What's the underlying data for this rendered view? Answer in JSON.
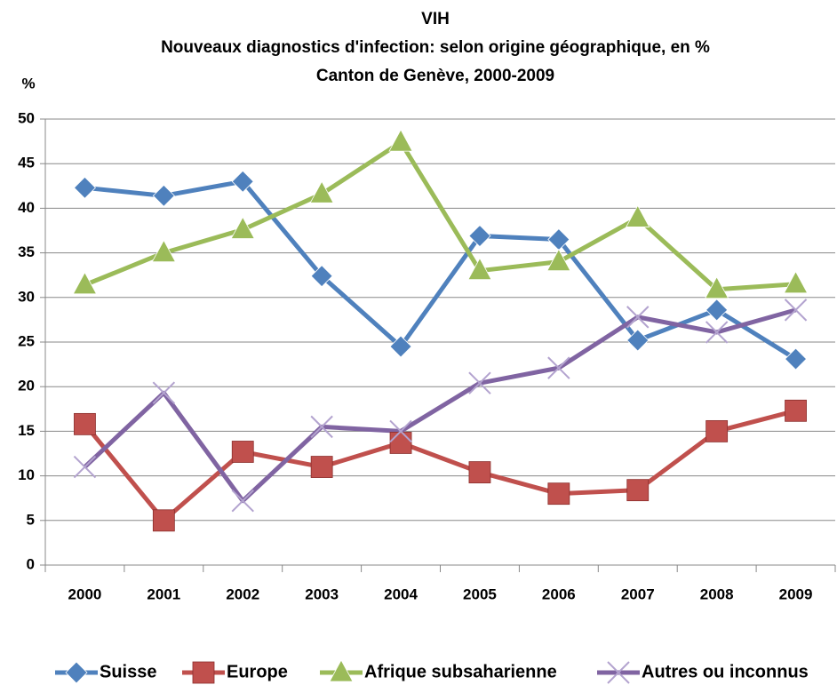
{
  "chart_data": {
    "type": "line",
    "title": [
      "VIH",
      "Nouveaux diagnostics d'infection: selon origine géographique, en %",
      "Canton de Genève, 2000-2009"
    ],
    "y_label": "%",
    "categories": [
      "2000",
      "2001",
      "2002",
      "2003",
      "2004",
      "2005",
      "2006",
      "2007",
      "2008",
      "2009"
    ],
    "series": [
      {
        "name": "Suisse",
        "color": "#4f81bd",
        "marker": "diamond",
        "values": [
          42.3,
          41.4,
          43.0,
          32.4,
          24.5,
          36.9,
          36.5,
          25.2,
          28.6,
          23.1
        ]
      },
      {
        "name": "Europe",
        "color": "#c0504d",
        "marker": "square",
        "values": [
          15.8,
          5.0,
          12.7,
          11.0,
          13.7,
          10.4,
          8.0,
          8.4,
          15.0,
          17.3
        ]
      },
      {
        "name": "Afrique subsaharienne",
        "color": "#9bbb59",
        "marker": "triangle",
        "values": [
          31.4,
          35.0,
          37.6,
          41.6,
          47.4,
          33.0,
          34.0,
          38.9,
          30.9,
          31.5
        ]
      },
      {
        "name": "Autres ou inconnus",
        "color": "#8064a2",
        "marker": "x",
        "values": [
          11.0,
          19.3,
          7.2,
          15.5,
          15.0,
          20.4,
          22.1,
          27.8,
          26.1,
          28.6
        ]
      }
    ],
    "ylim": [
      0,
      50
    ],
    "yticks": [
      0,
      5,
      10,
      15,
      20,
      25,
      30,
      35,
      40,
      45,
      50
    ],
    "grid": true,
    "legend": "bottom"
  }
}
